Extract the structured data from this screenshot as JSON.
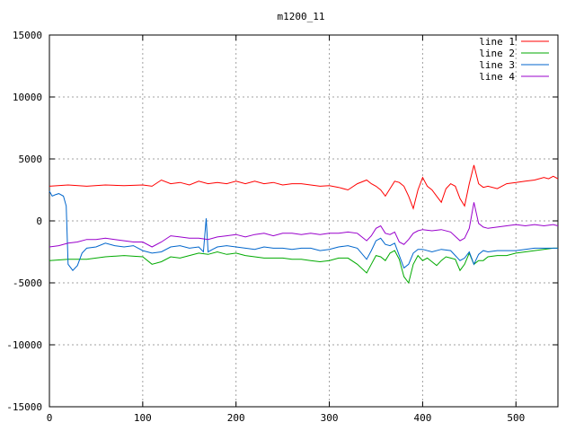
{
  "chart_data": {
    "type": "line",
    "title": "m1200_11",
    "xlim": [
      0,
      545
    ],
    "ylim": [
      -15000,
      15000
    ],
    "grid": true,
    "legend_position": "top-right",
    "x_ticks": [
      0,
      100,
      200,
      300,
      400,
      500
    ],
    "y_ticks": [
      -15000,
      -10000,
      -5000,
      0,
      5000,
      10000,
      15000
    ],
    "series": [
      {
        "name": "line 1",
        "color": "#ff0000",
        "points": [
          [
            0,
            2800
          ],
          [
            20,
            2900
          ],
          [
            40,
            2800
          ],
          [
            60,
            2900
          ],
          [
            80,
            2850
          ],
          [
            100,
            2900
          ],
          [
            110,
            2800
          ],
          [
            120,
            3300
          ],
          [
            130,
            3000
          ],
          [
            140,
            3100
          ],
          [
            150,
            2900
          ],
          [
            160,
            3200
          ],
          [
            170,
            3000
          ],
          [
            180,
            3100
          ],
          [
            190,
            3000
          ],
          [
            200,
            3200
          ],
          [
            210,
            3000
          ],
          [
            220,
            3200
          ],
          [
            230,
            3000
          ],
          [
            240,
            3100
          ],
          [
            250,
            2900
          ],
          [
            260,
            3000
          ],
          [
            270,
            3000
          ],
          [
            280,
            2900
          ],
          [
            290,
            2800
          ],
          [
            300,
            2850
          ],
          [
            310,
            2700
          ],
          [
            320,
            2500
          ],
          [
            330,
            3000
          ],
          [
            340,
            3300
          ],
          [
            345,
            3000
          ],
          [
            350,
            2800
          ],
          [
            355,
            2500
          ],
          [
            360,
            2000
          ],
          [
            365,
            2600
          ],
          [
            370,
            3200
          ],
          [
            375,
            3100
          ],
          [
            380,
            2800
          ],
          [
            385,
            2000
          ],
          [
            390,
            1000
          ],
          [
            395,
            2500
          ],
          [
            400,
            3500
          ],
          [
            405,
            2800
          ],
          [
            410,
            2500
          ],
          [
            415,
            2000
          ],
          [
            420,
            1500
          ],
          [
            425,
            2600
          ],
          [
            430,
            3000
          ],
          [
            435,
            2800
          ],
          [
            440,
            1800
          ],
          [
            445,
            1200
          ],
          [
            450,
            3000
          ],
          [
            455,
            4500
          ],
          [
            460,
            3000
          ],
          [
            465,
            2700
          ],
          [
            470,
            2800
          ],
          [
            480,
            2600
          ],
          [
            490,
            3000
          ],
          [
            500,
            3100
          ],
          [
            510,
            3200
          ],
          [
            520,
            3300
          ],
          [
            530,
            3500
          ],
          [
            535,
            3400
          ],
          [
            540,
            3600
          ],
          [
            545,
            3400
          ]
        ]
      },
      {
        "name": "line 2",
        "color": "#00aa00",
        "points": [
          [
            0,
            -3200
          ],
          [
            20,
            -3100
          ],
          [
            40,
            -3100
          ],
          [
            60,
            -2900
          ],
          [
            80,
            -2800
          ],
          [
            100,
            -2900
          ],
          [
            110,
            -3500
          ],
          [
            120,
            -3300
          ],
          [
            130,
            -2900
          ],
          [
            140,
            -3000
          ],
          [
            150,
            -2800
          ],
          [
            160,
            -2600
          ],
          [
            170,
            -2700
          ],
          [
            180,
            -2500
          ],
          [
            190,
            -2700
          ],
          [
            200,
            -2600
          ],
          [
            210,
            -2800
          ],
          [
            220,
            -2900
          ],
          [
            230,
            -3000
          ],
          [
            240,
            -3000
          ],
          [
            250,
            -3000
          ],
          [
            260,
            -3100
          ],
          [
            270,
            -3100
          ],
          [
            280,
            -3200
          ],
          [
            290,
            -3300
          ],
          [
            300,
            -3200
          ],
          [
            310,
            -3000
          ],
          [
            320,
            -3000
          ],
          [
            330,
            -3500
          ],
          [
            340,
            -4200
          ],
          [
            345,
            -3500
          ],
          [
            350,
            -2800
          ],
          [
            355,
            -2900
          ],
          [
            360,
            -3200
          ],
          [
            365,
            -2600
          ],
          [
            370,
            -2400
          ],
          [
            375,
            -3100
          ],
          [
            380,
            -4500
          ],
          [
            385,
            -5000
          ],
          [
            390,
            -3500
          ],
          [
            395,
            -2800
          ],
          [
            400,
            -3200
          ],
          [
            405,
            -3000
          ],
          [
            410,
            -3300
          ],
          [
            415,
            -3600
          ],
          [
            420,
            -3200
          ],
          [
            425,
            -2900
          ],
          [
            430,
            -3000
          ],
          [
            435,
            -3100
          ],
          [
            440,
            -4000
          ],
          [
            445,
            -3500
          ],
          [
            450,
            -2600
          ],
          [
            455,
            -3500
          ],
          [
            460,
            -3200
          ],
          [
            465,
            -3200
          ],
          [
            470,
            -2900
          ],
          [
            480,
            -2800
          ],
          [
            490,
            -2800
          ],
          [
            500,
            -2600
          ],
          [
            510,
            -2500
          ],
          [
            520,
            -2400
          ],
          [
            530,
            -2300
          ],
          [
            540,
            -2200
          ],
          [
            545,
            -2200
          ]
        ]
      },
      {
        "name": "line 3",
        "color": "#0066cc",
        "points": [
          [
            0,
            2400
          ],
          [
            3,
            2000
          ],
          [
            6,
            2100
          ],
          [
            10,
            2200
          ],
          [
            15,
            2000
          ],
          [
            18,
            1200
          ],
          [
            20,
            -3500
          ],
          [
            25,
            -4000
          ],
          [
            30,
            -3600
          ],
          [
            35,
            -2600
          ],
          [
            40,
            -2200
          ],
          [
            50,
            -2100
          ],
          [
            60,
            -1800
          ],
          [
            70,
            -2000
          ],
          [
            80,
            -2100
          ],
          [
            90,
            -2000
          ],
          [
            100,
            -2400
          ],
          [
            110,
            -2600
          ],
          [
            120,
            -2500
          ],
          [
            130,
            -2100
          ],
          [
            140,
            -2000
          ],
          [
            150,
            -2200
          ],
          [
            160,
            -2100
          ],
          [
            165,
            -2500
          ],
          [
            168,
            200
          ],
          [
            170,
            -2500
          ],
          [
            175,
            -2300
          ],
          [
            180,
            -2100
          ],
          [
            190,
            -2000
          ],
          [
            200,
            -2100
          ],
          [
            210,
            -2200
          ],
          [
            220,
            -2300
          ],
          [
            230,
            -2100
          ],
          [
            240,
            -2200
          ],
          [
            250,
            -2200
          ],
          [
            260,
            -2300
          ],
          [
            270,
            -2200
          ],
          [
            280,
            -2200
          ],
          [
            290,
            -2400
          ],
          [
            300,
            -2300
          ],
          [
            310,
            -2100
          ],
          [
            320,
            -2000
          ],
          [
            330,
            -2200
          ],
          [
            340,
            -3100
          ],
          [
            345,
            -2400
          ],
          [
            350,
            -1600
          ],
          [
            355,
            -1400
          ],
          [
            360,
            -1900
          ],
          [
            365,
            -2000
          ],
          [
            370,
            -1800
          ],
          [
            375,
            -2800
          ],
          [
            380,
            -3800
          ],
          [
            385,
            -3500
          ],
          [
            390,
            -2600
          ],
          [
            395,
            -2300
          ],
          [
            400,
            -2300
          ],
          [
            410,
            -2500
          ],
          [
            420,
            -2300
          ],
          [
            430,
            -2400
          ],
          [
            440,
            -3200
          ],
          [
            445,
            -3000
          ],
          [
            450,
            -2500
          ],
          [
            455,
            -3500
          ],
          [
            460,
            -2700
          ],
          [
            465,
            -2400
          ],
          [
            470,
            -2500
          ],
          [
            480,
            -2400
          ],
          [
            490,
            -2400
          ],
          [
            500,
            -2400
          ],
          [
            510,
            -2300
          ],
          [
            520,
            -2200
          ],
          [
            530,
            -2200
          ],
          [
            540,
            -2200
          ],
          [
            545,
            -2200
          ]
        ]
      },
      {
        "name": "line 4",
        "color": "#9900cc",
        "points": [
          [
            0,
            -2100
          ],
          [
            10,
            -2000
          ],
          [
            20,
            -1800
          ],
          [
            30,
            -1700
          ],
          [
            40,
            -1500
          ],
          [
            50,
            -1500
          ],
          [
            60,
            -1400
          ],
          [
            70,
            -1500
          ],
          [
            80,
            -1600
          ],
          [
            90,
            -1700
          ],
          [
            100,
            -1700
          ],
          [
            110,
            -2100
          ],
          [
            120,
            -1700
          ],
          [
            130,
            -1200
          ],
          [
            140,
            -1300
          ],
          [
            150,
            -1400
          ],
          [
            160,
            -1400
          ],
          [
            170,
            -1500
          ],
          [
            180,
            -1300
          ],
          [
            190,
            -1200
          ],
          [
            200,
            -1100
          ],
          [
            210,
            -1300
          ],
          [
            220,
            -1100
          ],
          [
            230,
            -1000
          ],
          [
            240,
            -1200
          ],
          [
            250,
            -1000
          ],
          [
            260,
            -1000
          ],
          [
            270,
            -1100
          ],
          [
            280,
            -1000
          ],
          [
            290,
            -1100
          ],
          [
            300,
            -1000
          ],
          [
            310,
            -1000
          ],
          [
            320,
            -900
          ],
          [
            330,
            -1000
          ],
          [
            340,
            -1600
          ],
          [
            345,
            -1200
          ],
          [
            350,
            -600
          ],
          [
            355,
            -400
          ],
          [
            360,
            -1000
          ],
          [
            365,
            -1100
          ],
          [
            370,
            -900
          ],
          [
            375,
            -1700
          ],
          [
            380,
            -1900
          ],
          [
            385,
            -1500
          ],
          [
            390,
            -1000
          ],
          [
            395,
            -800
          ],
          [
            400,
            -700
          ],
          [
            410,
            -800
          ],
          [
            420,
            -700
          ],
          [
            430,
            -900
          ],
          [
            440,
            -1600
          ],
          [
            445,
            -1400
          ],
          [
            450,
            -600
          ],
          [
            455,
            1500
          ],
          [
            460,
            -200
          ],
          [
            465,
            -500
          ],
          [
            470,
            -600
          ],
          [
            480,
            -500
          ],
          [
            490,
            -400
          ],
          [
            500,
            -300
          ],
          [
            510,
            -400
          ],
          [
            520,
            -300
          ],
          [
            530,
            -400
          ],
          [
            540,
            -300
          ],
          [
            545,
            -400
          ]
        ]
      }
    ]
  }
}
